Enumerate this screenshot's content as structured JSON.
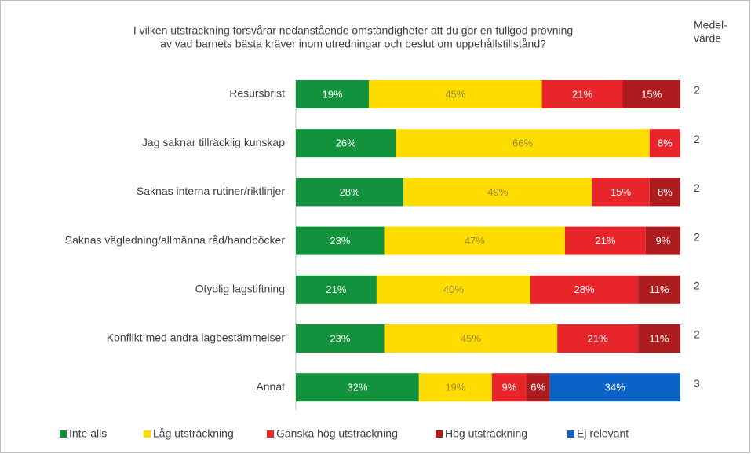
{
  "chart_data": {
    "type": "stacked-bar-horizontal",
    "title": [
      "I vilken utsträckning försvårar nedanstående omständigheter att du gör en fullgod prövning",
      "av vad barnets bästa kräver inom utredningar och beslut om uppehållstillstånd?"
    ],
    "categories": [
      "Resursbrist",
      "Jag saknar tillräcklig kunskap",
      "Saknas interna rutiner/riktlinjer",
      "Saknas vägledning/allmänna råd/handböcker",
      "Otydlig lagstiftning",
      "Konflikt med andra lagbestämmelser",
      "Annat"
    ],
    "xlim": [
      0,
      100
    ],
    "series": [
      {
        "name": "Inte alls",
        "color": "#12923c",
        "label_color": "#ffffff",
        "values": [
          19,
          26,
          28,
          23,
          21,
          23,
          32
        ],
        "value_labels": [
          "19%",
          "26%",
          "28%",
          "23%",
          "21%",
          "23%",
          "32%"
        ]
      },
      {
        "name": "Låg utsträckning",
        "color": "#ffdc00",
        "label_color": "#9c8a3a",
        "values": [
          45,
          66,
          49,
          47,
          40,
          45,
          19
        ],
        "value_labels": [
          "45%",
          "66%",
          "49%",
          "47%",
          "40%",
          "45%",
          "19%"
        ]
      },
      {
        "name": "Ganska hög utsträckning",
        "color": "#e8252b",
        "label_color": "#ffffff",
        "values": [
          21,
          8,
          15,
          21,
          28,
          21,
          9
        ],
        "value_labels": [
          "21%",
          "8%",
          "15%",
          "21%",
          "28%",
          "21%",
          "9%"
        ]
      },
      {
        "name": "Hög utsträckning",
        "color": "#ad1d1f",
        "label_color": "#ffffff",
        "values": [
          15,
          null,
          8,
          9,
          11,
          11,
          6
        ],
        "value_labels": [
          "15%",
          null,
          "8%",
          "9%",
          "11%",
          "11%",
          "6%"
        ]
      },
      {
        "name": "Ej relevant",
        "color": "#0b63c5",
        "label_color": "#ffffff",
        "values": [
          null,
          null,
          null,
          null,
          null,
          null,
          34
        ],
        "value_labels": [
          null,
          null,
          null,
          null,
          null,
          null,
          "34%"
        ]
      }
    ],
    "mean_header": [
      "Medel-",
      "värde"
    ],
    "means": [
      2,
      2,
      2,
      2,
      2,
      2,
      3
    ]
  }
}
